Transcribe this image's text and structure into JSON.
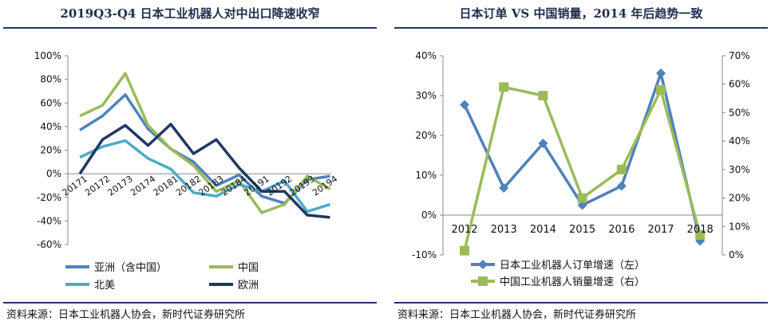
{
  "panels": {
    "left": {
      "title": "2019Q3-Q4 日本工业机器人对中出口降速收窄",
      "source": "资料来源：日本工业机器人协会，新时代证券研究所"
    },
    "right": {
      "title": "日本订单 VS 中国销量，2014 年后趋势一致",
      "source": "资料来源：日本工业机器人协会，新时代证券研究所"
    }
  },
  "chart_data": [
    {
      "type": "line",
      "title": "2019Q3-Q4 日本工业机器人对中出口降速收窄",
      "categories": [
        "2017Q1",
        "2017Q2",
        "2017Q3",
        "2017Q4",
        "2018Q1",
        "2018Q2",
        "2018Q3",
        "2018Q4",
        "2019Q1",
        "2019Q2",
        "2019Q3",
        "2019Q4"
      ],
      "ylim": [
        -60,
        100
      ],
      "yticks": [
        -60,
        -40,
        -20,
        0,
        20,
        40,
        60,
        80,
        100
      ],
      "ytick_labels": [
        "-60%",
        "-40%",
        "-20%",
        "0%",
        "20%",
        "40%",
        "60%",
        "80%",
        "100%"
      ],
      "grid": false,
      "legend": "bottom",
      "series": [
        {
          "name": "亚洲（含中国）",
          "color": "#4f81bd",
          "values": [
            37,
            49,
            67,
            38,
            21,
            10,
            -10,
            -1,
            -19,
            -25,
            -5,
            -2
          ]
        },
        {
          "name": "中国",
          "color": "#9bbb59",
          "values": [
            49,
            58,
            85,
            41,
            21,
            7,
            -15,
            -6,
            -33,
            -26,
            -2,
            -13
          ]
        },
        {
          "name": "北美",
          "color": "#4bacc6",
          "values": [
            14,
            23,
            28,
            13,
            4,
            -16,
            -19,
            -9,
            -15,
            -6,
            -32,
            -26
          ]
        },
        {
          "name": "欧洲",
          "color": "#1f3864",
          "values": [
            0,
            29,
            41,
            24,
            42,
            17,
            29,
            5,
            -15,
            -15,
            -35,
            -37
          ]
        }
      ]
    },
    {
      "type": "line",
      "title": "日本订单 VS 中国销量，2014 年后趋势一致",
      "categories": [
        "2012",
        "2013",
        "2014",
        "2015",
        "2016",
        "2017",
        "2018"
      ],
      "ylim_left": [
        -10,
        40
      ],
      "ylim_right": [
        0,
        70
      ],
      "yticks_left": [
        -10,
        0,
        10,
        20,
        30,
        40
      ],
      "ytick_labels_left": [
        "-10%",
        "0%",
        "10%",
        "20%",
        "30%",
        "40%"
      ],
      "yticks_right": [
        0,
        10,
        20,
        30,
        40,
        50,
        60,
        70
      ],
      "ytick_labels_right": [
        "0%",
        "10%",
        "20%",
        "30%",
        "40%",
        "50%",
        "60%",
        "70%"
      ],
      "grid": false,
      "legend": "bottom",
      "series": [
        {
          "name": "日本工业机器人订单增速（左）",
          "axis": "left",
          "color": "#4f81bd",
          "marker": "diamond",
          "values": [
            27.7,
            6.8,
            18.0,
            2.5,
            7.3,
            35.6,
            -6.5
          ]
        },
        {
          "name": "中国工业机器人销量增速（右）",
          "axis": "right",
          "color": "#9bbb59",
          "marker": "square",
          "values": [
            1.5,
            59,
            56,
            20,
            30,
            58,
            7
          ]
        }
      ]
    }
  ]
}
